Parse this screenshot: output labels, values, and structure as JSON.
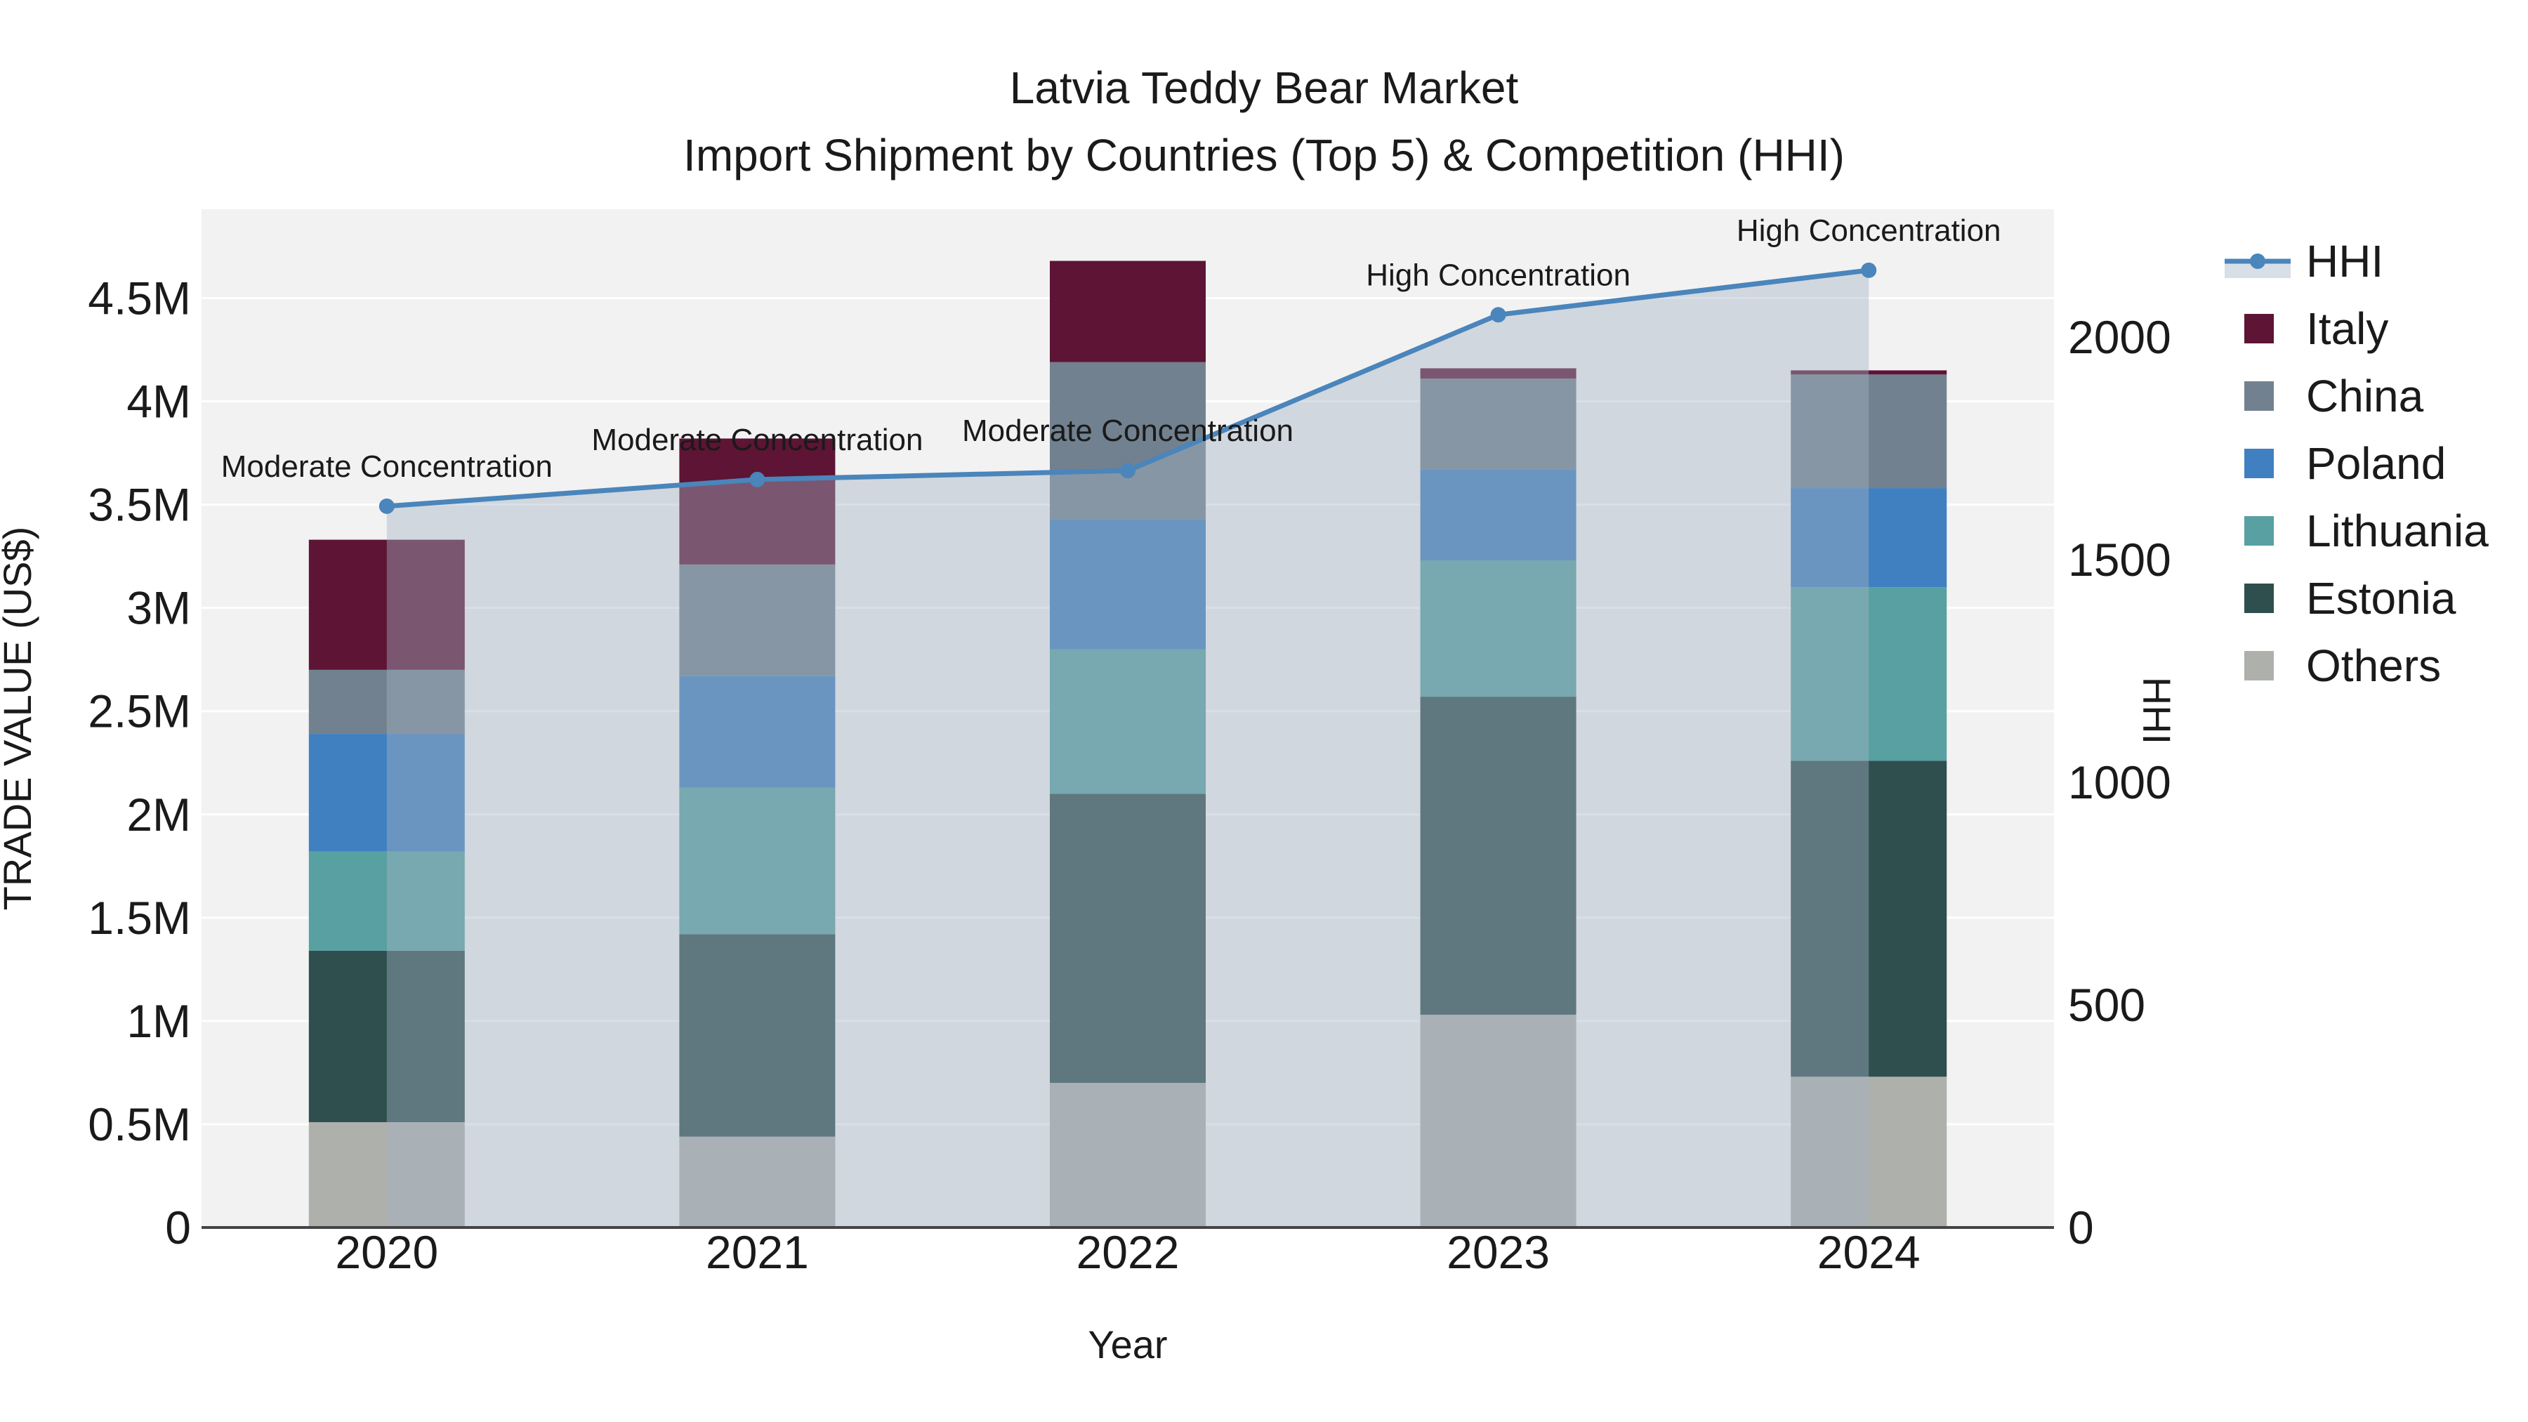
{
  "chart_data": {
    "type": "combo-stacked-bar-line",
    "title_line1": "Latvia Teddy Bear Market",
    "title_line2": "Import Shipment by Countries (Top 5) & Competition (HHI)",
    "xlabel": "Year",
    "ylabel_left": "TRADE VALUE (US$)",
    "ylabel_right": "HHI",
    "categories": [
      "2020",
      "2021",
      "2022",
      "2023",
      "2024"
    ],
    "bar_unit": "million US$",
    "bar_series_bottom_to_top": [
      {
        "name": "Others",
        "color": "#aeb0ac",
        "values": [
          0.51,
          0.44,
          0.7,
          1.03,
          0.73
        ]
      },
      {
        "name": "Estonia",
        "color": "#2e4f4e",
        "values": [
          0.83,
          0.98,
          1.4,
          1.54,
          1.53
        ]
      },
      {
        "name": "Lithuania",
        "color": "#58a0a2",
        "values": [
          0.48,
          0.71,
          0.7,
          0.66,
          0.84
        ]
      },
      {
        "name": "Poland",
        "color": "#4080c0",
        "values": [
          0.57,
          0.54,
          0.63,
          0.44,
          0.48
        ]
      },
      {
        "name": "China",
        "color": "#72818f",
        "values": [
          0.31,
          0.54,
          0.76,
          0.44,
          0.55
        ]
      },
      {
        "name": "Italy",
        "color": "#5e1434",
        "values": [
          0.63,
          0.61,
          0.49,
          0.05,
          0.02
        ]
      }
    ],
    "bar_totals": [
      3.33,
      3.82,
      4.68,
      4.16,
      4.15
    ],
    "line_series": {
      "name": "HHI",
      "color": "#4a85bb",
      "fill_color": "#a4b2c4",
      "fill_opacity": 0.42,
      "values": [
        1620,
        1680,
        1700,
        2050,
        2150
      ]
    },
    "annotations": [
      {
        "x_index": 0,
        "text": "Moderate Concentration"
      },
      {
        "x_index": 1,
        "text": "Moderate Concentration"
      },
      {
        "x_index": 2,
        "text": "Moderate Concentration"
      },
      {
        "x_index": 3,
        "text": "High Concentration"
      },
      {
        "x_index": 4,
        "text": "High Concentration"
      }
    ],
    "y_left": {
      "tick_labels": [
        "0",
        "0.5M",
        "1M",
        "1.5M",
        "2M",
        "2.5M",
        "3M",
        "3.5M",
        "4M",
        "4.5M"
      ],
      "tick_values": [
        0,
        0.5,
        1,
        1.5,
        2,
        2.5,
        3,
        3.5,
        4,
        4.5
      ],
      "max": 4.93
    },
    "y_right": {
      "tick_labels": [
        "0",
        "500",
        "1000",
        "1500",
        "2000"
      ],
      "tick_values": [
        0,
        500,
        1000,
        1500,
        2000
      ],
      "max": 2287
    },
    "legend": {
      "items": [
        {
          "label": "HHI",
          "kind": "line"
        },
        {
          "label": "Italy",
          "kind": "square"
        },
        {
          "label": "China",
          "kind": "square"
        },
        {
          "label": "Poland",
          "kind": "square"
        },
        {
          "label": "Lithuania",
          "kind": "square"
        },
        {
          "label": "Estonia",
          "kind": "square"
        },
        {
          "label": "Others",
          "kind": "square"
        }
      ],
      "position": "right"
    },
    "style": {
      "plot_bg": "#f2f2f2",
      "grid_color": "#ffffff",
      "axis_line_color": "#444444",
      "text_color": "#1a1a1a"
    }
  }
}
